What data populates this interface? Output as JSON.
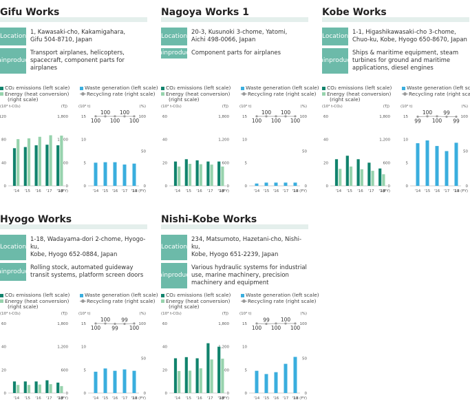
{
  "labels": {
    "location": "Location",
    "main_products": [
      "Main",
      "products"
    ],
    "legend_co2": "CO₂ emissions (left scale)",
    "legend_energy": "Energy (heat conversion)",
    "legend_right_scale": "(right scale)",
    "legend_waste": "Waste generation (left scale)",
    "legend_recycle": "Recycling rate (right scale)",
    "unit_co2": "(10³ t-CO₂)",
    "unit_tj": "(TJ)",
    "unit_waste": "(10³ t)",
    "unit_pct": "(%)",
    "fy": "(FY)",
    "years": [
      "'14",
      "'15",
      "'16",
      "'17",
      "'18"
    ]
  },
  "colors": {
    "co2": "#11836d",
    "energy": "#97d3ad",
    "waste": "#3aaede",
    "recycle_line": "#999999",
    "label_bg": "#6cbaa9"
  },
  "works": [
    {
      "name": "Gifu Works",
      "location": [
        "1, Kawasaki-cho, Kakamigahara,",
        "Gifu 504-8710, Japan"
      ],
      "products": [
        "Transport airplanes, helicopters,",
        "spacecraft, component parts for",
        "airplanes"
      ],
      "chart_data": {
        "type": "bar",
        "categories": [
          "'14",
          "'15",
          "'16",
          "'17",
          "'18"
        ],
        "co2": {
          "values": [
            65,
            67,
            70,
            71,
            70
          ],
          "ylim": [
            0,
            120
          ],
          "yticks": [
            0,
            40,
            80,
            120
          ]
        },
        "energy": {
          "values": [
            1210,
            1230,
            1270,
            1310,
            1300
          ],
          "ylim": [
            0,
            1800
          ],
          "yticks": [
            0,
            600,
            1200,
            1800
          ]
        },
        "waste": {
          "values": [
            5,
            5.1,
            5.1,
            4.6,
            4.8
          ],
          "ylim": [
            0,
            15
          ],
          "yticks": [
            0,
            5,
            10,
            15
          ]
        },
        "recycling": {
          "values": [
            100,
            100,
            100,
            100,
            100
          ],
          "labels": [
            "100",
            "100",
            "100",
            "100",
            "100"
          ],
          "ylim": [
            0,
            100
          ],
          "yticks": [
            0,
            50,
            100
          ]
        }
      }
    },
    {
      "name": "Nagoya Works 1",
      "location": [
        "20-3, Kusunoki 3-chome, Yatomi,",
        "Aichi 498-0066, Japan"
      ],
      "products": [
        "Component parts for airplanes"
      ],
      "chart_data": {
        "type": "bar",
        "categories": [
          "'14",
          "'15",
          "'16",
          "'17",
          "'18"
        ],
        "co2": {
          "values": [
            21,
            23,
            22,
            21,
            21
          ],
          "ylim": [
            0,
            60
          ],
          "yticks": [
            0,
            20,
            40,
            60
          ]
        },
        "energy": {
          "values": [
            500,
            570,
            560,
            550,
            500
          ],
          "ylim": [
            0,
            1800
          ],
          "yticks": [
            0,
            600,
            1200,
            1800
          ]
        },
        "waste": {
          "values": [
            0.5,
            0.7,
            0.7,
            0.7,
            0.7
          ],
          "ylim": [
            0,
            15
          ],
          "yticks": [
            0,
            5,
            10,
            15
          ]
        },
        "recycling": {
          "values": [
            100,
            100,
            100,
            100,
            100
          ],
          "labels": [
            "100",
            "100",
            "100",
            "100",
            "100"
          ],
          "ylim": [
            0,
            100
          ],
          "yticks": [
            0,
            50,
            100
          ]
        }
      }
    },
    {
      "name": "Kobe Works",
      "location": [
        "1-1, Higashikawasaki-cho 3-chome,",
        "Chuo-ku, Kobe, Hyogo 650-8670, Japan"
      ],
      "products": [
        "Ships & maritime equipment, steam",
        "turbines for ground and maritime",
        "applications, diesel engines"
      ],
      "chart_data": {
        "type": "bar",
        "categories": [
          "'14",
          "'15",
          "'16",
          "'17",
          "'18"
        ],
        "co2": {
          "values": [
            23,
            26,
            23,
            20,
            15
          ],
          "ylim": [
            0,
            60
          ],
          "yticks": [
            0,
            20,
            40,
            60
          ]
        },
        "energy": {
          "values": [
            440,
            500,
            430,
            390,
            300
          ],
          "ylim": [
            0,
            1800
          ],
          "yticks": [
            0,
            600,
            1200,
            1800
          ]
        },
        "waste": {
          "values": [
            9.2,
            9.8,
            8.6,
            7.5,
            9.3
          ],
          "ylim": [
            0,
            15
          ],
          "yticks": [
            0,
            5,
            10,
            15
          ]
        },
        "recycling": {
          "values": [
            99,
            100,
            100,
            99,
            99
          ],
          "labels": [
            "99",
            "100",
            "100",
            "99",
            "99"
          ],
          "ylim": [
            0,
            100
          ],
          "yticks": [
            0,
            50,
            100
          ]
        }
      }
    },
    {
      "name": "Hyogo Works",
      "location": [
        "1-18, Wadayama-dori 2-chome, Hyogo-ku,",
        "Kobe, Hyogo 652-0884, Japan"
      ],
      "products": [
        "Rolling stock, automated guideway",
        "transit systems, platform screen doors"
      ],
      "chart_data": {
        "type": "bar",
        "categories": [
          "'14",
          "'15",
          "'16",
          "'17",
          "'18"
        ],
        "co2": {
          "values": [
            10,
            10,
            10,
            11,
            9
          ],
          "ylim": [
            0,
            60
          ],
          "yticks": [
            0,
            20,
            40,
            60
          ]
        },
        "energy": {
          "values": [
            210,
            210,
            220,
            230,
            180
          ],
          "ylim": [
            0,
            1800
          ],
          "yticks": [
            0,
            600,
            1200,
            1800
          ]
        },
        "waste": {
          "values": [
            4.6,
            5.3,
            4.8,
            5.1,
            4.8
          ],
          "ylim": [
            0,
            15
          ],
          "yticks": [
            0,
            5,
            10,
            15
          ]
        },
        "recycling": {
          "values": [
            100,
            100,
            99,
            99,
            100
          ],
          "labels": [
            "100",
            "100",
            "99",
            "99",
            "100"
          ],
          "ylim": [
            0,
            100
          ],
          "yticks": [
            0,
            50,
            100
          ]
        }
      }
    },
    {
      "name": "Nishi-Kobe Works",
      "location": [
        "234, Matsumoto, Hazetani-cho, Nishi-ku,",
        "Kobe, Hyogo 651-2239, Japan"
      ],
      "products": [
        "Various hydraulic systems for industrial",
        "use, marine machinery, precision",
        "machinery and equipment"
      ],
      "chart_data": {
        "type": "bar",
        "categories": [
          "'14",
          "'15",
          "'16",
          "'17",
          "'18"
        ],
        "co2": {
          "values": [
            30,
            31,
            30,
            43,
            40
          ],
          "ylim": [
            0,
            60
          ],
          "yticks": [
            0,
            20,
            40,
            60
          ]
        },
        "energy": {
          "values": [
            570,
            580,
            640,
            870,
            890
          ],
          "ylim": [
            0,
            1800
          ],
          "yticks": [
            0,
            600,
            1200,
            1800
          ]
        },
        "waste": {
          "values": [
            4.8,
            4.1,
            4.5,
            6.3,
            7.8
          ],
          "ylim": [
            0,
            15
          ],
          "yticks": [
            0,
            5,
            10,
            15
          ]
        },
        "recycling": {
          "values": [
            100,
            99,
            100,
            100,
            100
          ],
          "labels": [
            "100",
            "99",
            "100",
            "100",
            "100"
          ],
          "ylim": [
            0,
            100
          ],
          "yticks": [
            0,
            50,
            100
          ]
        }
      }
    }
  ]
}
